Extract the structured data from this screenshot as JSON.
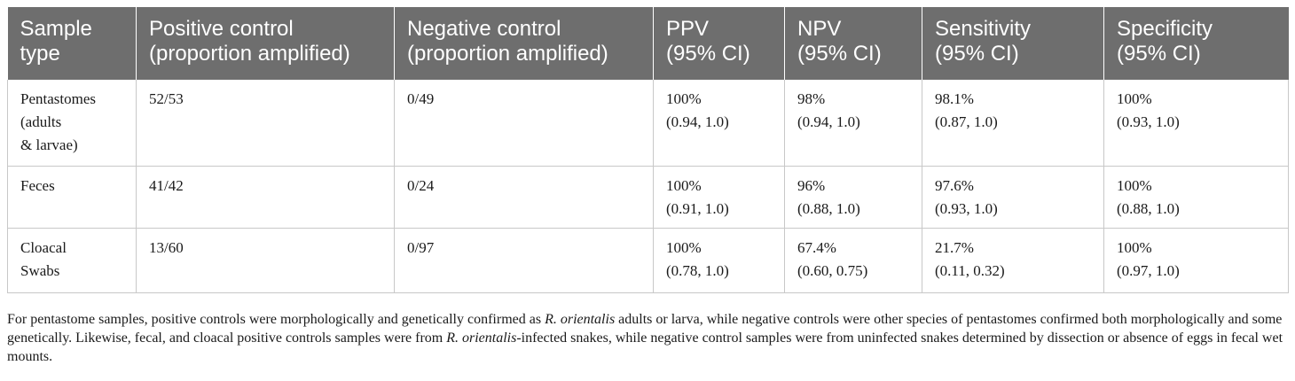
{
  "table": {
    "headers": [
      [
        "Sample",
        "type"
      ],
      [
        "Positive control",
        "(proportion amplified)"
      ],
      [
        "Negative control",
        "(proportion amplified)"
      ],
      [
        "PPV",
        "(95% CI)"
      ],
      [
        "NPV",
        "(95% CI)"
      ],
      [
        "Sensitivity",
        "(95% CI)"
      ],
      [
        "Specificity",
        "(95% CI)"
      ]
    ],
    "rows": [
      {
        "sample_type": [
          "Pentastomes",
          "(adults",
          "& larvae)"
        ],
        "positive_control": "52/53",
        "negative_control": "0/49",
        "ppv": [
          "100%",
          "(0.94, 1.0)"
        ],
        "npv": [
          "98%",
          "(0.94, 1.0)"
        ],
        "sensitivity": [
          "98.1%",
          "(0.87, 1.0)"
        ],
        "specificity": [
          "100%",
          "(0.93, 1.0)"
        ]
      },
      {
        "sample_type": [
          "Feces"
        ],
        "positive_control": "41/42",
        "negative_control": "0/24",
        "ppv": [
          "100%",
          "(0.91, 1.0)"
        ],
        "npv": [
          "96%",
          "(0.88, 1.0)"
        ],
        "sensitivity": [
          "97.6%",
          "(0.93, 1.0)"
        ],
        "specificity": [
          "100%",
          "(0.88, 1.0)"
        ]
      },
      {
        "sample_type": [
          "Cloacal",
          "Swabs"
        ],
        "positive_control": "13/60",
        "negative_control": "0/97",
        "ppv": [
          "100%",
          "(0.78, 1.0)"
        ],
        "npv": [
          "67.4%",
          "(0.60, 0.75)"
        ],
        "sensitivity": [
          "21.7%",
          "(0.11, 0.32)"
        ],
        "specificity": [
          "100%",
          "(0.97, 1.0)"
        ]
      }
    ]
  },
  "footnote": {
    "p1": "For pentastome samples, positive controls were morphologically and genetically confirmed as ",
    "species1": "R. orientalis",
    "p2": " adults or larva, while negative controls were other species of pentastomes confirmed both morphologically and some genetically. Likewise, fecal, and cloacal positive controls samples were from ",
    "species2": "R. orientalis",
    "p3": "-infected snakes, while negative control samples were from uninfected snakes determined by dissection or absence of eggs in fecal wet mounts."
  }
}
